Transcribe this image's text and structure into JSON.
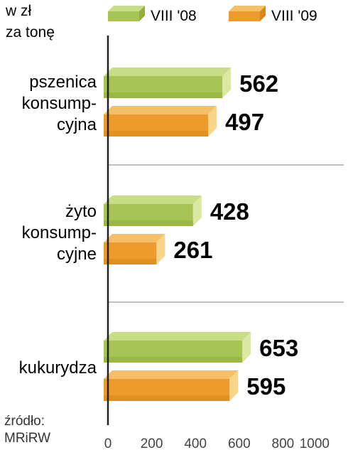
{
  "unit_label": [
    "w zł",
    "za tonę"
  ],
  "source": [
    "źródło:",
    "MRiRW"
  ],
  "colors": {
    "series_2008": {
      "front": "#a9c456",
      "top": "#c9dd86",
      "end": "#dbe8a4",
      "shade": "#8fae3c"
    },
    "series_2009": {
      "front": "#eb9c2c",
      "top": "#f6c06a",
      "end": "#f9d58c",
      "shade": "#d9861c"
    },
    "axis": "#222222",
    "separator": "#9a9a9a"
  },
  "chart_data": {
    "type": "bar",
    "orientation": "horizontal",
    "categories": [
      [
        "pszenica",
        "konsump-",
        "cyjna"
      ],
      [
        "żyto",
        "konsump-",
        "cyjne"
      ],
      [
        "kukurydza"
      ]
    ],
    "series": [
      {
        "name": "VIII '08",
        "values": [
          562,
          428,
          653
        ]
      },
      {
        "name": "VIII '09",
        "values": [
          497,
          261,
          595
        ]
      }
    ],
    "xlim": [
      0,
      1000
    ],
    "xticks": [
      0,
      200,
      400,
      600,
      800,
      1000
    ],
    "legend": "top",
    "grid": false
  }
}
